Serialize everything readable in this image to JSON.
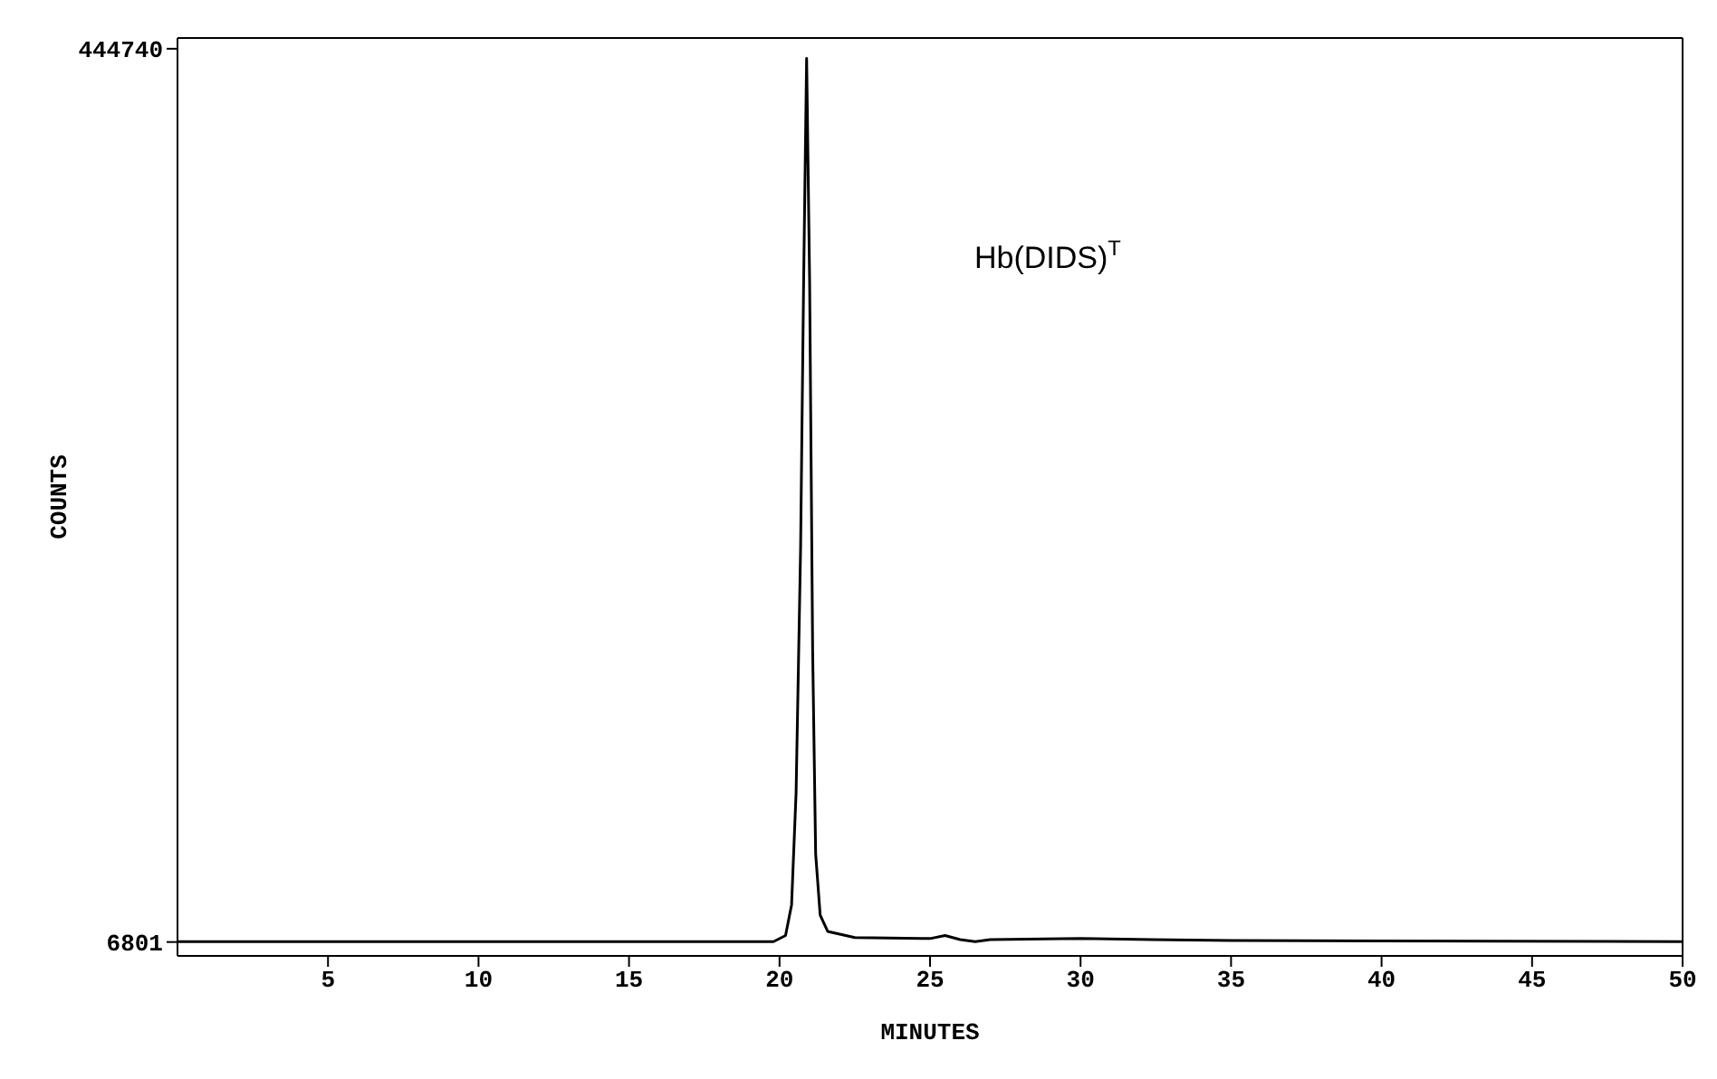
{
  "chart_data": {
    "type": "line",
    "xlabel": "MINUTES",
    "ylabel": "COUNTS",
    "annotations": [
      "Hb(DIDS)$^{T}$"
    ],
    "x": [
      0,
      10,
      19.8,
      20.2,
      20.4,
      20.55,
      20.7,
      20.8,
      20.9,
      21.0,
      21.1,
      21.2,
      21.35,
      21.6,
      22.5,
      25,
      25.5,
      26,
      26.5,
      27,
      30,
      35,
      50
    ],
    "series": [
      {
        "color": "#000000",
        "values": [
          7000,
          7000,
          7000,
          10000,
          25000,
          80000,
          200000,
          330000,
          440000,
          330000,
          150000,
          50000,
          20000,
          12000,
          9000,
          8500,
          10000,
          8000,
          7000,
          8000,
          8500,
          7500,
          7000
        ]
      }
    ],
    "xlim": [
      0,
      50
    ],
    "xticks": [
      5,
      10,
      15,
      20,
      25,
      30,
      35,
      40,
      45,
      50
    ],
    "ylim": [
      0,
      450000
    ],
    "yticks": [
      6801,
      444740
    ],
    "marker": "none",
    "line_style": "solid"
  }
}
